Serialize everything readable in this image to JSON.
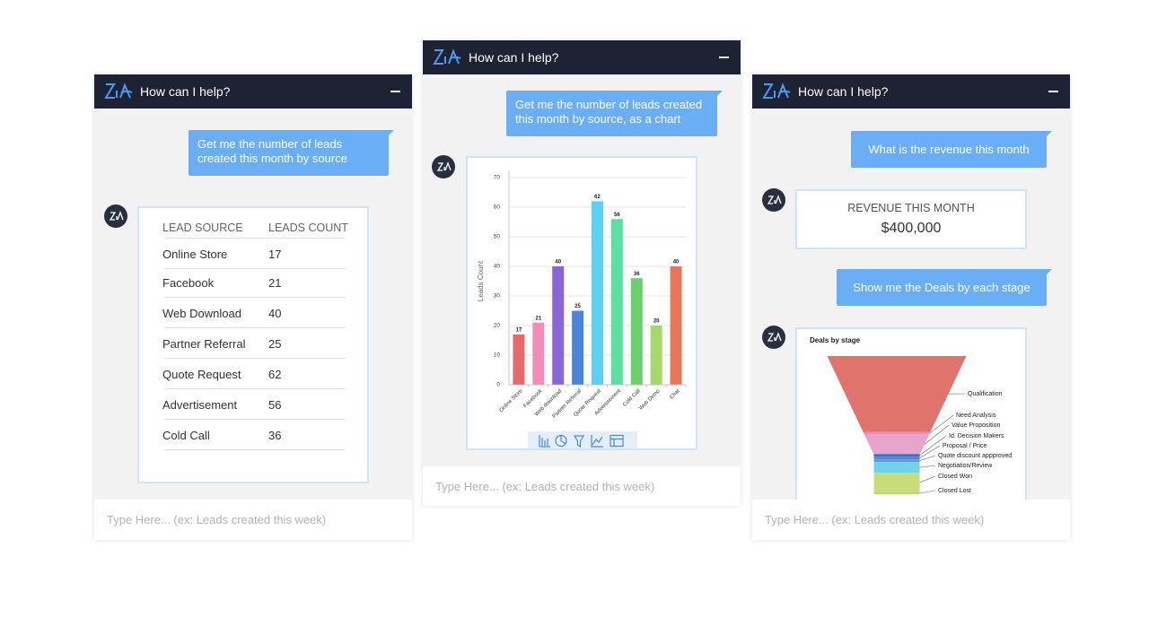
{
  "panel_1": {
    "header": "How can I help?",
    "user_message": "Get me the number of leads created this month by source",
    "table": {
      "columns": [
        "LEAD SOURCE",
        "LEADS COUNT"
      ],
      "rows": [
        [
          "Online Store",
          17
        ],
        [
          "Facebook",
          21
        ],
        [
          "Web Download",
          40
        ],
        [
          "Partner Referral",
          25
        ],
        [
          "Quote Request",
          62
        ],
        [
          "Advertisement",
          56
        ],
        [
          "Cold Call",
          36
        ]
      ]
    },
    "input_placeholder": "Type Here... (ex: Leads created this week)"
  },
  "panel_2": {
    "header": "How can I help?",
    "user_message": "Get me the number of leads created this month by source, as a chart",
    "input_placeholder": "Type Here... (ex: Leads created this week)"
  },
  "panel_3": {
    "header": "How can I help?",
    "user_message_1": "What is the revenue this month",
    "revenue_card": {
      "label": "REVENUE THIS MONTH",
      "value": "$400,000"
    },
    "user_message_2": "Show me the Deals by each stage",
    "input_placeholder": "Type Here... (ex: Leads created this week)"
  },
  "chart_data": [
    {
      "type": "bar",
      "ylabel": "Leads Count",
      "categories": [
        "Online Store",
        "Facebook",
        "Web download",
        "Partner Referral",
        "Quote Request",
        "Advertisement",
        "Cold Call",
        "Web Demo",
        "Chat"
      ],
      "values": [
        17,
        21,
        40,
        25,
        62,
        56,
        36,
        20,
        40
      ],
      "colors": [
        "#e8696b",
        "#f28cb8",
        "#8866d9",
        "#4a86d8",
        "#5bd0f2",
        "#5be0a4",
        "#6ccf6c",
        "#a8d86a",
        "#e8775a"
      ],
      "ylim": [
        0,
        70
      ],
      "yticks": [
        0,
        10,
        20,
        30,
        40,
        50,
        60,
        70
      ],
      "grid": true
    },
    {
      "type": "funnel",
      "title": "Deals by stage",
      "categories": [
        "Qualification",
        "Need Analysis",
        "Value Proposition",
        "Id. Decision Makers",
        "Proposal / Price",
        "Quote discount appproved",
        "Negotiation/Review",
        "Closed Won",
        "Closed Lost"
      ],
      "values": [
        85,
        3,
        22,
        3,
        3,
        3,
        12,
        22,
        2
      ],
      "colors": [
        "#e0736b",
        "#e890bc",
        "#e8a4cc",
        "#3d6fc0",
        "#4f86d6",
        "#5a9be0",
        "#6fd3ee",
        "#c8dc7a",
        "#bfd470"
      ]
    }
  ]
}
